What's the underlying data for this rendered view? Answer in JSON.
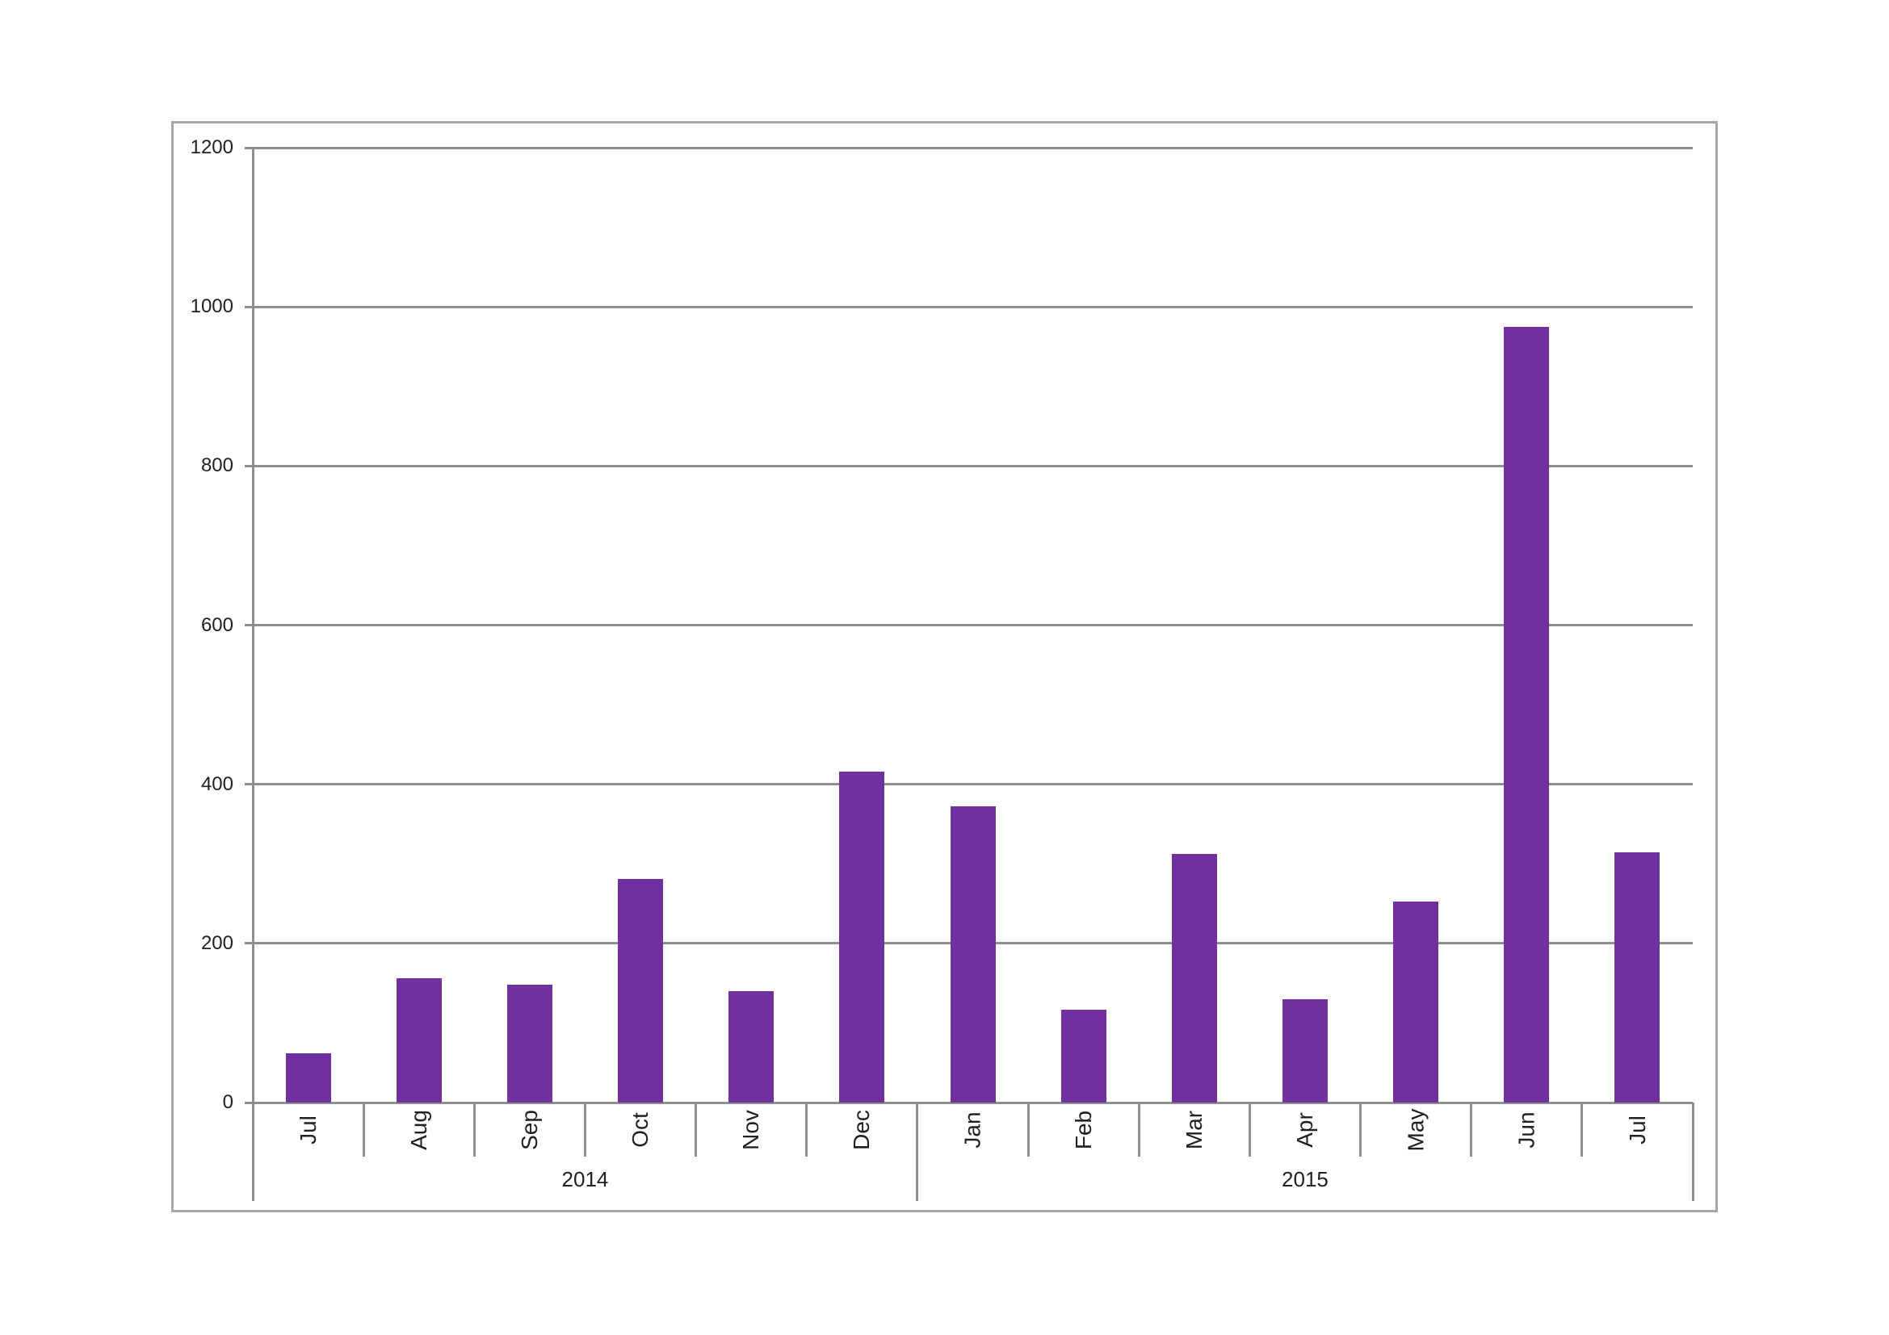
{
  "chart_data": {
    "type": "bar",
    "title": "",
    "categories": [
      "Jul",
      "Aug",
      "Sep",
      "Oct",
      "Nov",
      "Dec",
      "Jan",
      "Feb",
      "Mar",
      "Apr",
      "May",
      "Jun",
      "Jul"
    ],
    "values": [
      62,
      156,
      148,
      281,
      140,
      416,
      372,
      117,
      312,
      130,
      253,
      975,
      314
    ],
    "year_groups": [
      {
        "label": "2014",
        "start_index": 0,
        "month_count": 6
      },
      {
        "label": "2015",
        "start_index": 6,
        "month_count": 7
      }
    ],
    "xlabel": "",
    "ylabel": "",
    "ylim": [
      0,
      1200
    ],
    "ytick_interval": 200,
    "yticks": [
      "0",
      "200",
      "400",
      "600",
      "800",
      "1000",
      "1200"
    ],
    "grid": true,
    "legend": false,
    "bar_color": "#7030A0",
    "axis_line_color": "#8f8f8f",
    "chart_border_color": "#a6a6a6",
    "text_color": "#212121"
  }
}
